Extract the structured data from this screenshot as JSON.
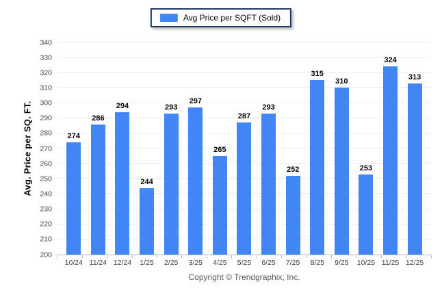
{
  "legend": {
    "label": "Avg Price per SQFT (Sold)",
    "swatch_color": "#4285f4",
    "border_color": "#1f3864"
  },
  "chart_data": {
    "type": "bar",
    "title": "",
    "series_name": "Avg Price per SQFT (Sold)",
    "categories": [
      "10/24",
      "11/24",
      "12/24",
      "1/25",
      "2/25",
      "3/25",
      "4/25",
      "5/25",
      "6/25",
      "7/25",
      "8/25",
      "9/25",
      "10/25",
      "11/25",
      "12/25"
    ],
    "values": [
      274,
      286,
      294,
      244,
      293,
      297,
      265,
      287,
      293,
      252,
      315,
      310,
      253,
      324,
      313
    ],
    "xlabel": "",
    "ylabel": "Avg. Price per SQ. FT.",
    "ylim": [
      200,
      340
    ],
    "yticks": [
      200,
      210,
      220,
      230,
      240,
      250,
      260,
      270,
      280,
      290,
      300,
      310,
      320,
      330,
      340
    ],
    "grid": true,
    "legend_position": "top-center",
    "bar_color": "#4285f4",
    "value_labels": true
  },
  "footer": {
    "copyright": "Copyright © Trendgraphix, Inc."
  }
}
